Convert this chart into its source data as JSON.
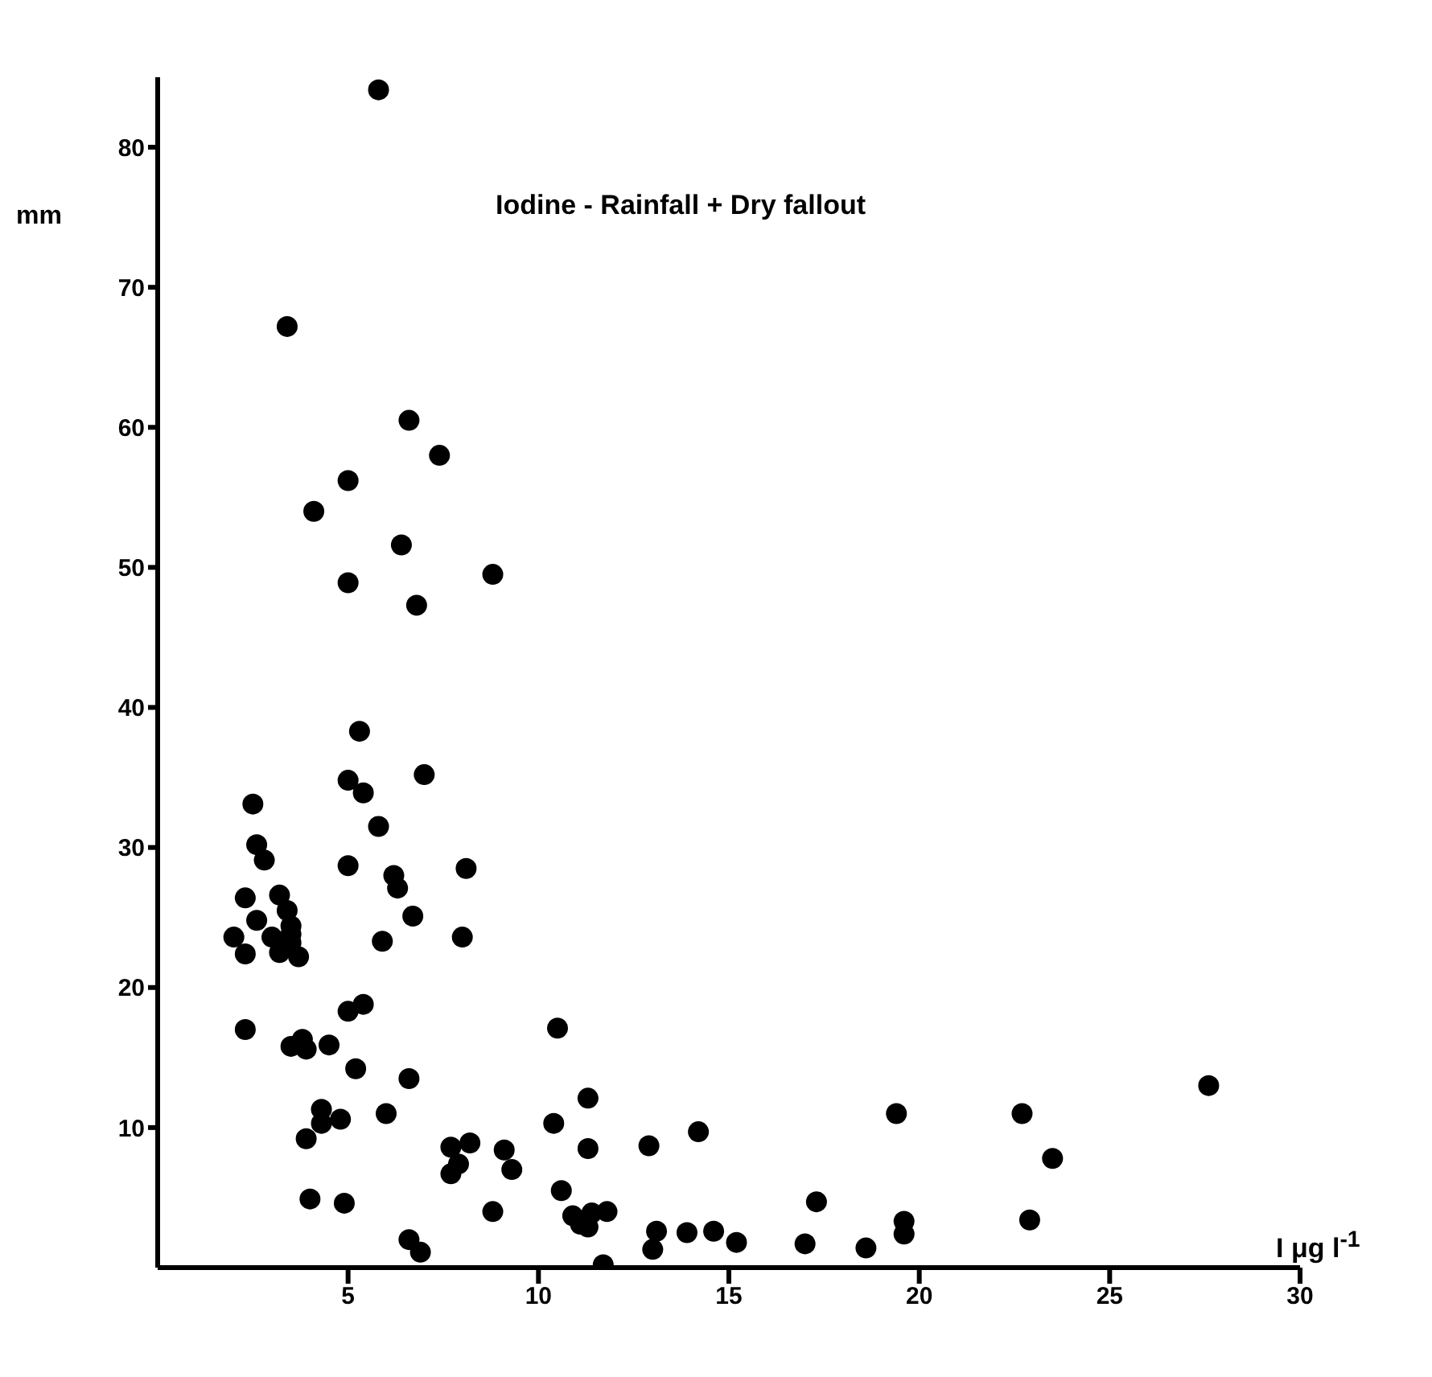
{
  "chart_data": {
    "type": "scatter",
    "title": "Iodine - Rainfall + Dry fallout",
    "xlabel": "I μg l$^{-1}$",
    "ylabel": "mm",
    "marker": "circle",
    "grid": false,
    "legend": false,
    "xlim": [
      0,
      30
    ],
    "ylim": [
      0,
      85
    ],
    "xticks": [
      5,
      10,
      15,
      20,
      25,
      30
    ],
    "yticks": [
      10,
      20,
      30,
      40,
      50,
      60,
      70,
      80
    ],
    "series": [
      {
        "color": "#000000",
        "x": [
          5.8,
          3.4,
          6.6,
          7.4,
          5.0,
          4.1,
          6.4,
          5.0,
          8.8,
          6.8,
          5.3,
          7.0,
          5.0,
          5.4,
          2.5,
          2.6,
          2.8,
          5.8,
          5.0,
          8.1,
          6.2,
          6.3,
          2.3,
          3.2,
          3.4,
          2.6,
          3.5,
          6.7,
          2.0,
          3.0,
          3.5,
          3.5,
          5.9,
          8.0,
          2.3,
          3.2,
          3.7,
          2.3,
          5.0,
          5.4,
          3.8,
          3.5,
          3.9,
          4.5,
          5.2,
          6.6,
          10.5,
          11.3,
          4.3,
          4.3,
          4.8,
          6.0,
          3.9,
          4.0,
          4.9,
          7.7,
          8.2,
          7.9,
          7.7,
          9.1,
          9.3,
          8.8,
          10.4,
          11.3,
          10.6,
          10.9,
          11.3,
          11.1,
          11.4,
          11.8,
          11.7,
          12.9,
          14.2,
          13.1,
          13.0,
          13.9,
          14.6,
          15.2,
          17.0,
          17.3,
          18.6,
          19.4,
          19.6,
          19.6,
          22.7,
          22.9,
          23.5,
          27.6,
          6.6,
          6.9
        ],
        "values": [
          84.1,
          67.2,
          60.5,
          58.0,
          56.2,
          54.0,
          51.6,
          48.9,
          49.5,
          47.3,
          38.3,
          35.2,
          34.8,
          33.9,
          33.1,
          30.2,
          29.1,
          31.5,
          28.7,
          28.5,
          28.0,
          27.1,
          26.4,
          26.6,
          25.5,
          24.8,
          24.4,
          25.1,
          23.6,
          23.6,
          23.8,
          23.2,
          23.3,
          23.6,
          22.4,
          22.5,
          22.2,
          17.0,
          18.3,
          18.8,
          16.3,
          15.8,
          15.6,
          15.9,
          14.2,
          13.5,
          17.1,
          12.1,
          11.3,
          10.3,
          10.6,
          11.0,
          9.2,
          4.9,
          4.6,
          8.6,
          8.9,
          7.4,
          6.7,
          8.4,
          7.0,
          4.0,
          10.3,
          8.5,
          5.5,
          3.7,
          2.9,
          3.1,
          3.9,
          4.0,
          0.2,
          8.7,
          9.7,
          2.6,
          1.3,
          2.5,
          2.6,
          1.8,
          1.7,
          4.7,
          1.4,
          11.0,
          3.3,
          2.4,
          11.0,
          3.4,
          7.8,
          13.0,
          2.0,
          1.1
        ]
      }
    ]
  }
}
